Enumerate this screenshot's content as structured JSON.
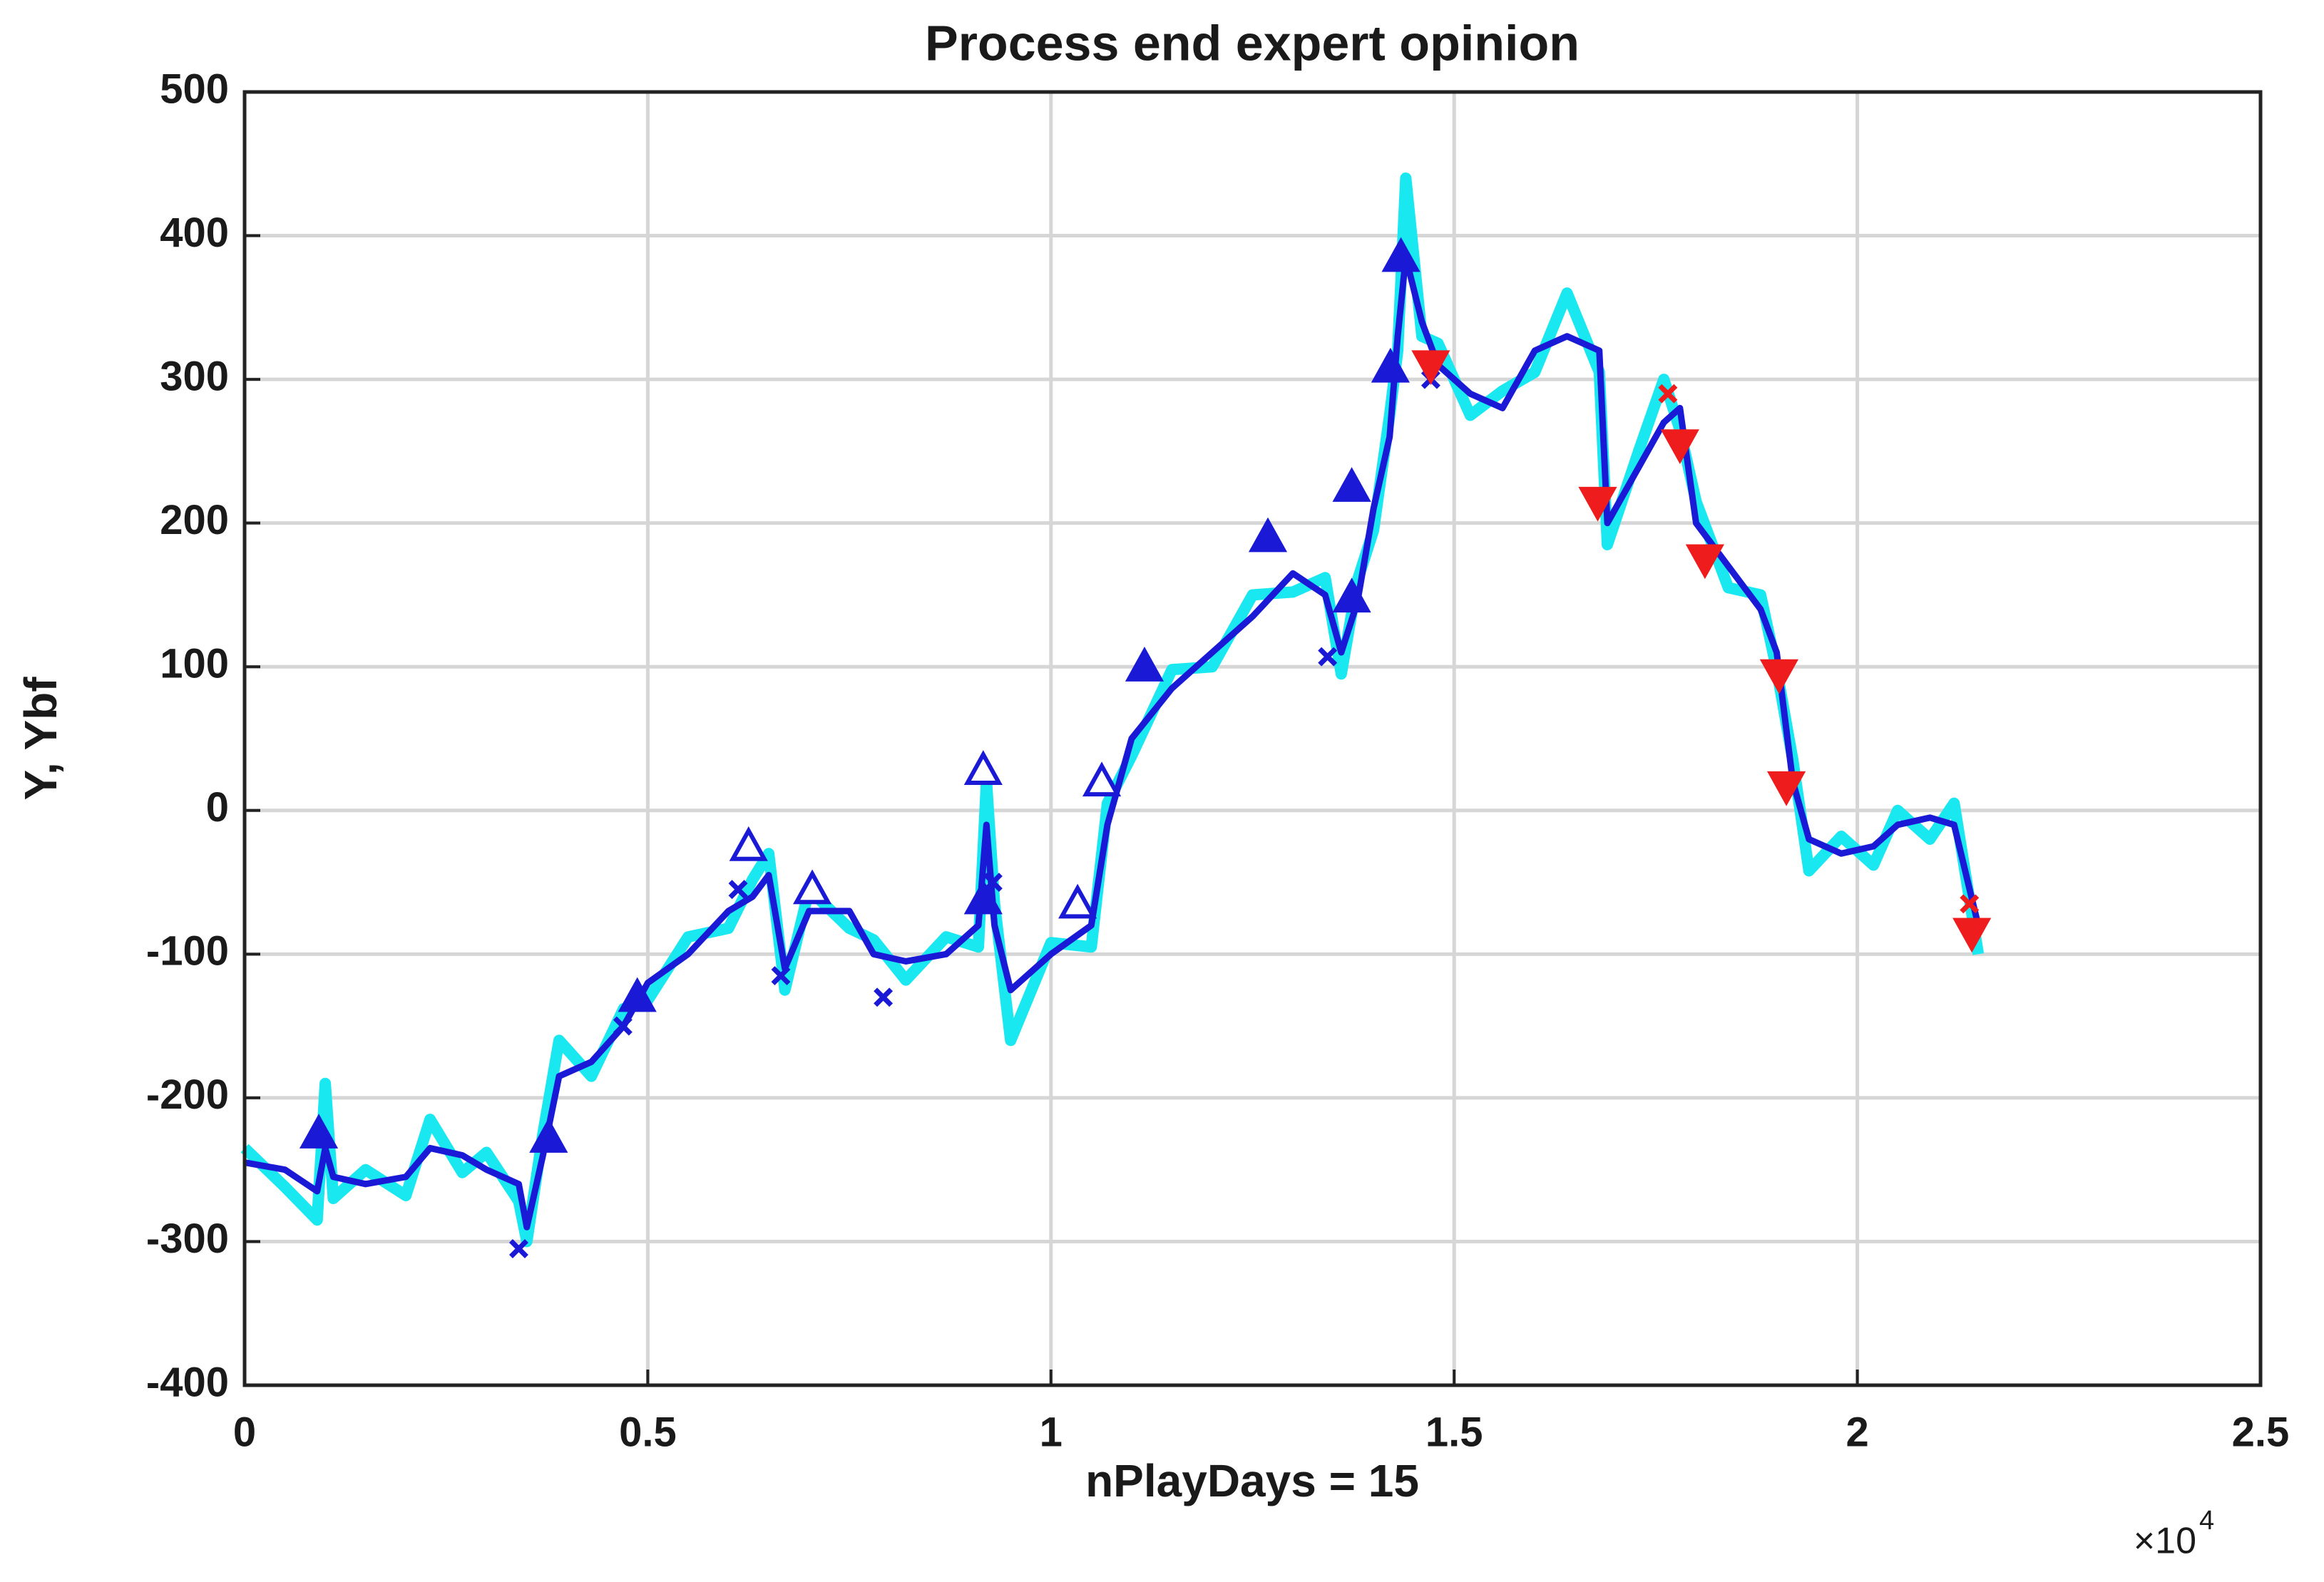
{
  "chart_data": {
    "type": "line",
    "title": "Process end expert opinion",
    "xlabel": "nPlayDays = 15",
    "ylabel": "Y,  Ybf",
    "x_multiplier": "×10",
    "x_exponent": "4",
    "xlim": [
      0,
      25000
    ],
    "ylim": [
      -400,
      500
    ],
    "xticks": [
      0,
      {
        "value": 5000,
        "label": "0.5"
      },
      {
        "value": 10000,
        "label": "1"
      },
      {
        "value": 15000,
        "label": "1.5"
      },
      {
        "value": 20000,
        "label": "2"
      },
      {
        "value": 25000,
        "label": "2.5"
      }
    ],
    "yticks": [
      -400,
      -300,
      -200,
      -100,
      0,
      100,
      200,
      300,
      400,
      500
    ],
    "grid": true,
    "x": [
      0,
      500,
      900,
      1000,
      1100,
      1500,
      2000,
      2300,
      2700,
      3000,
      3400,
      3500,
      3700,
      3900,
      4300,
      4700,
      5000,
      5500,
      6000,
      6300,
      6500,
      6700,
      7000,
      7500,
      7800,
      8200,
      8700,
      9100,
      9200,
      9300,
      9500,
      10000,
      10500,
      10700,
      11000,
      11500,
      12000,
      12500,
      13000,
      13400,
      13600,
      13800,
      14000,
      14200,
      14300,
      14400,
      14600,
      14800,
      15200,
      15600,
      16000,
      16400,
      16800,
      16900,
      17300,
      17600,
      17800,
      18000,
      18400,
      18800,
      19000,
      19200,
      19400,
      19800,
      20200,
      20500,
      20900,
      21200,
      21500
    ],
    "series": [
      {
        "color": "#19e8f0",
        "values": [
          -235,
          -262,
          -285,
          -190,
          -270,
          -250,
          -268,
          -215,
          -252,
          -238,
          -272,
          -300,
          -225,
          -160,
          -185,
          -138,
          -132,
          -88,
          -82,
          -48,
          -30,
          -125,
          -55,
          -82,
          -90,
          -118,
          -88,
          -95,
          20,
          -65,
          -160,
          -92,
          -95,
          5,
          38,
          98,
          100,
          150,
          152,
          162,
          95,
          160,
          195,
          275,
          320,
          440,
          330,
          325,
          275,
          292,
          305,
          360,
          305,
          185,
          252,
          300,
          265,
          215,
          155,
          150,
          98,
          35,
          -42,
          -18,
          -38,
          0,
          -20,
          5,
          -100
        ]
      },
      {
        "color": "#1a1ad6",
        "values": [
          -245,
          -250,
          -265,
          -235,
          -255,
          -260,
          -255,
          -235,
          -240,
          -250,
          -260,
          -290,
          -240,
          -185,
          -175,
          -150,
          -120,
          -100,
          -70,
          -60,
          -45,
          -110,
          -70,
          -70,
          -100,
          -105,
          -100,
          -80,
          -10,
          -80,
          -125,
          -100,
          -80,
          -10,
          50,
          85,
          110,
          135,
          165,
          150,
          110,
          145,
          210,
          260,
          330,
          385,
          340,
          310,
          290,
          280,
          320,
          330,
          320,
          200,
          240,
          270,
          280,
          200,
          170,
          140,
          110,
          20,
          -20,
          -30,
          -25,
          -10,
          -5,
          -10,
          -80
        ]
      }
    ],
    "markers": [
      {
        "color": "#1a1ad6",
        "marker": "triangle-up",
        "filled": true,
        "x": [
          920,
          3770,
          4870,
          9160,
          11160,
          12690,
          13730,
          13730,
          14210,
          14340
        ],
        "values": [
          -225,
          -228,
          -130,
          -62,
          100,
          190,
          148,
          225,
          308,
          385
        ]
      },
      {
        "color": "#1a1ad6",
        "marker": "triangle-up",
        "filled": false,
        "x": [
          6250,
          7040,
          9160,
          10330,
          10630
        ],
        "values": [
          -25,
          -55,
          28,
          -65,
          20
        ]
      },
      {
        "color": "#1a1ad6",
        "marker": "x",
        "filled": true,
        "x": [
          3400,
          4690,
          6120,
          6650,
          7920,
          9280,
          13430,
          14710
        ],
        "values": [
          -305,
          -150,
          -55,
          -115,
          -130,
          -50,
          107,
          300
        ]
      },
      {
        "color": "#ee1c1c",
        "marker": "triangle-down",
        "filled": true,
        "x": [
          14710,
          16780,
          17800,
          18110,
          19030,
          19120,
          21420
        ],
        "values": [
          310,
          215,
          255,
          175,
          95,
          17,
          -85
        ]
      },
      {
        "color": "#ee1c1c",
        "marker": "x",
        "filled": true,
        "x": [
          17650,
          21390
        ],
        "values": [
          290,
          -65
        ]
      }
    ]
  }
}
